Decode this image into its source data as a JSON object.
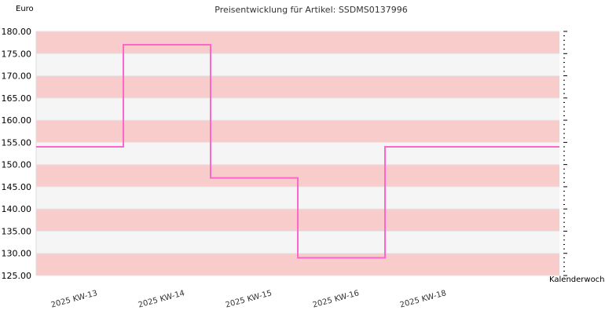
{
  "chart_data": {
    "type": "line",
    "step": true,
    "title": "Preisentwicklung für Artikel: SSDMS0137996",
    "ylabel": "Euro",
    "xlabel": "Kalenderwoche",
    "categories": [
      "2025 KW-13",
      "2025 KW-14",
      "2025 KW-15",
      "2025 KW-16",
      "2025 KW-18"
    ],
    "series": [
      {
        "values": [
          154,
          177,
          147,
          129,
          154
        ],
        "color": "#ff66cc"
      }
    ],
    "extend_to_end": true,
    "ylim": [
      125,
      180
    ],
    "yticks": [
      "125.00",
      "130.00",
      "135.00",
      "140.00",
      "145.00",
      "150.00",
      "155.00",
      "160.00",
      "165.00",
      "170.00",
      "175.00",
      "180.00"
    ],
    "grid": true,
    "band_colors": [
      "#f5f5f5",
      "#f9cccc"
    ],
    "background": "#f5f5f5"
  }
}
